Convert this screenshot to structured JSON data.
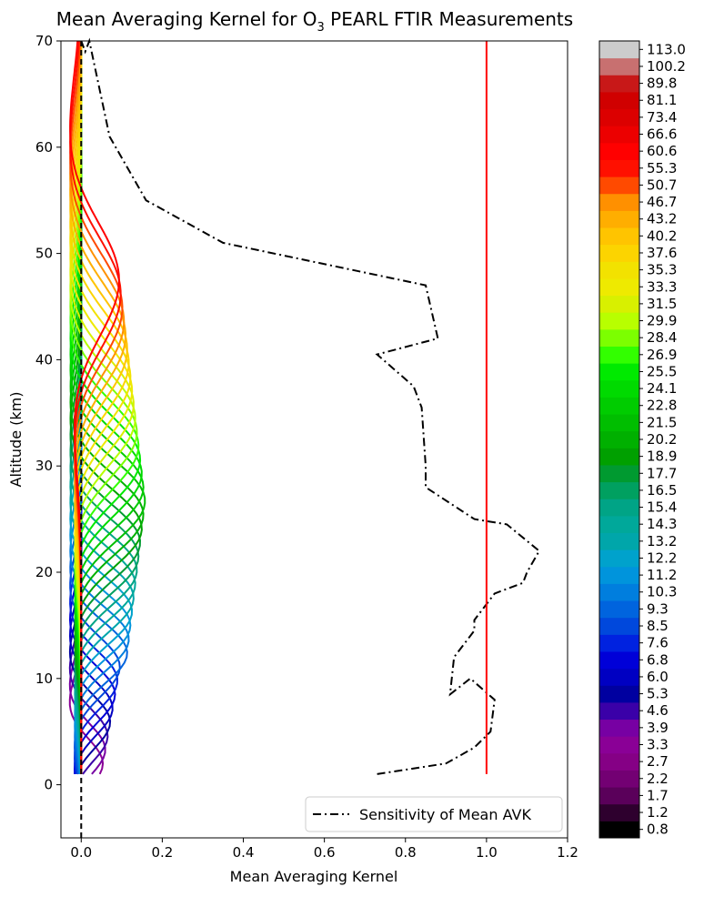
{
  "chart_data": {
    "type": "line",
    "title_main": "Mean Averaging Kernel for O",
    "title_sub": "3",
    "title_rest": " PEARL FTIR Measurements",
    "xlabel": "Mean Averaging Kernel",
    "ylabel": "Altitude (km)",
    "xlim": [
      -0.05,
      1.2
    ],
    "ylim": [
      -5,
      70
    ],
    "x_ticks": [
      0.0,
      0.2,
      0.4,
      0.6,
      0.8,
      1.0,
      1.2
    ],
    "x_tick_labels": [
      "0.0",
      "0.2",
      "0.4",
      "0.6",
      "0.8",
      "1.0",
      "1.2"
    ],
    "y_ticks": [
      0,
      10,
      20,
      30,
      40,
      50,
      60,
      70
    ],
    "y_tick_labels": [
      "0",
      "10",
      "20",
      "30",
      "40",
      "50",
      "60",
      "70"
    ],
    "legend": {
      "position": "lower-right",
      "label": "Sensitivity of Mean AVK"
    },
    "colorbar_labels": [
      "0.8",
      "1.2",
      "1.7",
      "2.2",
      "2.7",
      "3.3",
      "3.9",
      "4.6",
      "5.3",
      "6.0",
      "6.8",
      "7.6",
      "8.5",
      "9.3",
      "10.3",
      "11.2",
      "12.2",
      "13.2",
      "14.3",
      "15.4",
      "16.5",
      "17.7",
      "18.9",
      "20.2",
      "21.5",
      "22.8",
      "24.1",
      "25.5",
      "26.9",
      "28.4",
      "29.9",
      "31.5",
      "33.3",
      "35.3",
      "37.6",
      "40.2",
      "43.2",
      "46.7",
      "50.7",
      "55.3",
      "60.6",
      "66.6",
      "73.4",
      "81.1",
      "89.8",
      "100.2",
      "113.0"
    ],
    "colorbar_colors": [
      "#000000",
      "#2e002e",
      "#5a005a",
      "#730073",
      "#850085",
      "#8a0096",
      "#7700a3",
      "#3a00a8",
      "#0000a0",
      "#0000c2",
      "#0000d8",
      "#0022e0",
      "#0048dc",
      "#0064de",
      "#007ede",
      "#0094dc",
      "#00a2cc",
      "#00a6aa",
      "#00a89a",
      "#00a486",
      "#00a060",
      "#009a30",
      "#00a000",
      "#00b000",
      "#00be00",
      "#00cc00",
      "#00da00",
      "#00ea00",
      "#32ff00",
      "#7cff00",
      "#b8ff00",
      "#d8f000",
      "#eeea00",
      "#f2e200",
      "#fcd400",
      "#ffc400",
      "#ffae00",
      "#ff9000",
      "#ff4a00",
      "#ff1000",
      "#ff0000",
      "#ec0000",
      "#dc0000",
      "#d00000",
      "#c81818",
      "#c87070",
      "#cccccc"
    ],
    "series": [
      {
        "name": "Sensitivity of Mean AVK",
        "color": "#000000",
        "style": "dashdot",
        "x": [
          0.73,
          0.9,
          0.97,
          1.01,
          1.02,
          0.96,
          0.91,
          0.92,
          0.97,
          0.97,
          1.02,
          1.09,
          1.1,
          1.13,
          1.05,
          0.97,
          0.85,
          0.85,
          0.84,
          0.82,
          0.73,
          0.88,
          0.85,
          0.35,
          0.16,
          0.07,
          0.02,
          0.01,
          0.0
        ],
        "y": [
          1,
          2,
          3.5,
          5,
          8,
          10,
          8.5,
          12,
          14.5,
          15.5,
          18,
          19,
          20,
          22,
          24.5,
          25,
          28,
          30,
          35.5,
          37.5,
          40.5,
          42,
          47,
          51,
          55,
          61,
          70,
          69,
          70
        ]
      },
      {
        "name": "",
        "color": "#ff0000",
        "style": "solid",
        "x": [
          1.0,
          1.0
        ],
        "y": [
          1,
          70
        ]
      }
    ]
  }
}
